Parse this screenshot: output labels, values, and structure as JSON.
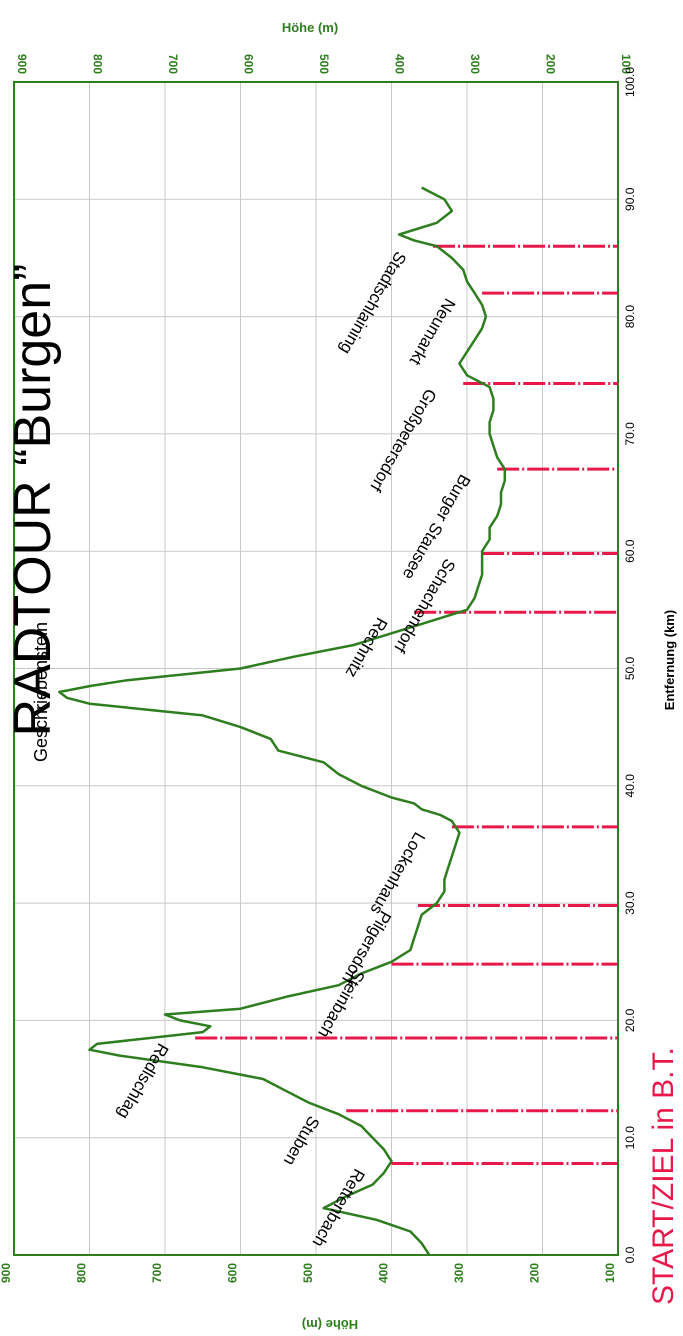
{
  "title": "RADTOUR “Burgen”",
  "start_label": "START/ZIEL in B.T.",
  "colors": {
    "profile": "#2e7d1e",
    "axis_text": "#2e7d1e",
    "grid": "#c8c8c8",
    "markers": "#e8194a",
    "text": "#000000"
  },
  "chart_data": {
    "type": "line",
    "orientation": "rotated-90-clockwise",
    "xlabel": "Entfernung (km)",
    "ylabel": "Höhe (m)",
    "ylabel_top": "Höhe (m)",
    "xlim": [
      0,
      100
    ],
    "ylim": [
      100,
      900
    ],
    "x_ticks": [
      "0.0",
      "10.0",
      "20.0",
      "30.0",
      "40.0",
      "50.0",
      "60.0",
      "70.0",
      "80.0",
      "90.0",
      "100.0"
    ],
    "y_ticks": [
      "100",
      "200",
      "300",
      "400",
      "500",
      "600",
      "700",
      "800",
      "900"
    ],
    "grid": true,
    "series": [
      {
        "x": [
          0,
          1,
          2,
          3,
          4,
          5,
          6,
          7,
          8,
          9,
          10,
          11,
          12,
          12.5,
          13,
          14,
          15,
          16,
          17,
          17.5,
          18,
          18.5,
          19,
          19.5,
          20,
          20.5,
          21,
          22,
          23,
          24,
          25,
          26,
          27,
          28,
          29,
          30,
          31,
          32,
          33,
          34,
          35,
          36,
          37,
          37.5,
          38,
          38.5,
          39,
          40,
          41,
          42,
          43,
          44,
          45,
          46,
          47,
          47.5,
          48,
          48.5,
          49,
          50,
          51,
          52,
          53,
          54,
          55,
          56,
          57,
          58,
          59,
          60,
          61,
          62,
          63,
          64,
          65,
          66,
          67,
          68,
          69,
          70,
          71,
          72,
          73,
          74,
          75,
          76,
          77,
          78,
          79,
          80,
          81,
          82,
          83,
          84,
          85,
          86,
          86.5,
          87,
          88,
          89,
          90,
          91
        ],
        "y": [
          350,
          360,
          375,
          420,
          490,
          460,
          425,
          410,
          400,
          410,
          425,
          440,
          470,
          490,
          510,
          540,
          570,
          650,
          760,
          800,
          790,
          720,
          650,
          640,
          680,
          700,
          600,
          540,
          470,
          440,
          400,
          375,
          370,
          365,
          360,
          340,
          330,
          330,
          325,
          320,
          315,
          310,
          320,
          335,
          360,
          370,
          400,
          440,
          470,
          490,
          550,
          560,
          600,
          650,
          800,
          830,
          840,
          800,
          750,
          600,
          530,
          450,
          400,
          350,
          300,
          290,
          285,
          280,
          280,
          280,
          270,
          270,
          260,
          255,
          255,
          250,
          250,
          260,
          265,
          270,
          270,
          265,
          265,
          270,
          300,
          310,
          300,
          290,
          280,
          275,
          280,
          290,
          300,
          305,
          320,
          340,
          370,
          390,
          340,
          320,
          330,
          360
        ]
      }
    ],
    "places": [
      {
        "name": "Rettenbach",
        "km": 7.8,
        "elev": 400
      },
      {
        "name": "Stuben",
        "km": 12.3,
        "elev": 460
      },
      {
        "name": "Redlschlag",
        "km": 18.5,
        "elev": 660
      },
      {
        "name": "Steinbach",
        "km": 24.8,
        "elev": 400
      },
      {
        "name": "Pilgersdorf",
        "km": 29.8,
        "elev": 365
      },
      {
        "name": "Lockenhaus",
        "km": 36.5,
        "elev": 320
      },
      {
        "name": "Geschriebenstein",
        "km": 48,
        "elev": 835
      },
      {
        "name": "Rechnitz",
        "km": 54.8,
        "elev": 370
      },
      {
        "name": "Schachendorf",
        "km": 59.8,
        "elev": 280
      },
      {
        "name": "Burger Stausee",
        "km": 67,
        "elev": 260
      },
      {
        "name": "Großpetersdorf",
        "km": 74.3,
        "elev": 305
      },
      {
        "name": "Neumarkt",
        "km": 82,
        "elev": 280
      },
      {
        "name": "Stadtschlaining",
        "km": 86,
        "elev": 345
      }
    ]
  }
}
